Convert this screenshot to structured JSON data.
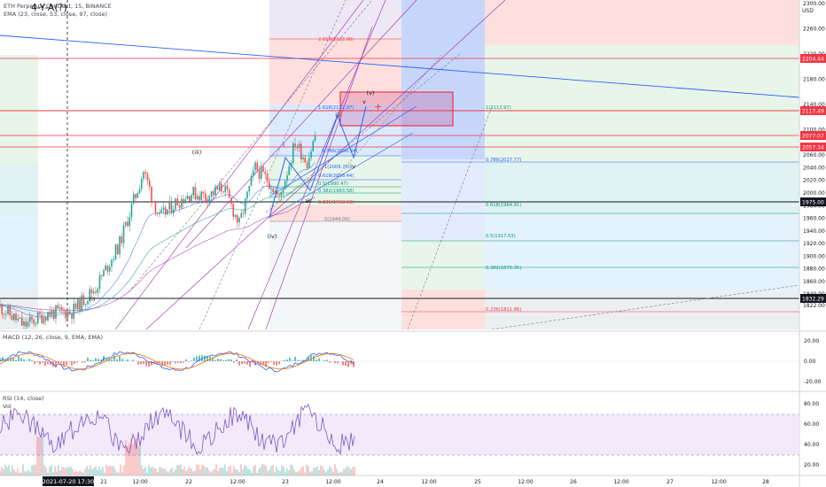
{
  "header": {
    "symbol_line": "ETH Perpetual Contract, 15, BINANCE",
    "ema_line": "EMA (23, close, 53, close, 97, close)",
    "overlay_label": "4-Y-A(?)"
  },
  "price_axis": {
    "currency": "USD",
    "ticks": [
      "2300.00",
      "2260.00",
      "2220.00",
      "2180.00",
      "2140.00",
      "2100.00",
      "2060.00",
      "2040.00",
      "2020.00",
      "2000.00",
      "1980.00",
      "1960.00",
      "1940.00",
      "1920.00",
      "1900.00",
      "1880.00",
      "1860.00",
      "1840.00",
      "1822.00"
    ],
    "badges": [
      {
        "label": "2204.44",
        "color": "#f23645"
      },
      {
        "label": "2117.49",
        "color": "#f23645"
      },
      {
        "label": "2077.07",
        "color": "#f23645"
      },
      {
        "label": "2057.34",
        "color": "#f23645"
      },
      {
        "label": "1975.00",
        "color": "#131722"
      },
      {
        "label": "1832.29",
        "color": "#131722"
      }
    ]
  },
  "macd": {
    "label": "MACD (12, 26, close, 9, EMA, EMA)",
    "ticks": [
      "20.00",
      "0.00",
      "-20.00"
    ]
  },
  "rsi": {
    "label": "RSI (14, close)",
    "vol_label": "Vol",
    "ticks": [
      "80.00",
      "60.00",
      "40.00",
      "20.00"
    ]
  },
  "time_axis": {
    "labels": [
      "21",
      "12:00",
      "22",
      "12:00",
      "23",
      "12:00",
      "24",
      "12:00",
      "25",
      "12:00",
      "26",
      "12:00",
      "27",
      "12:00",
      "28"
    ],
    "cursor_label": "2021-07-20   17:30"
  },
  "fib_labels": [
    {
      "text": "2.618(2232.00)",
      "color": "#f23645"
    },
    {
      "text": "1.618(2112.97)",
      "color": "#2962ff"
    },
    {
      "text": "1(2112.97)",
      "color": "#089981"
    },
    {
      "text": "0.786(2027.77)",
      "color": "#2962ff"
    },
    {
      "text": "0.618(1964.91)",
      "color": "#089981"
    },
    {
      "text": "0.5(1917.63)",
      "color": "#089981"
    },
    {
      "text": "0.382(1870.35)",
      "color": "#089981"
    },
    {
      "text": "0.236(1811.86)",
      "color": "#f23645"
    },
    {
      "text": "0.618(2008.44)",
      "color": "#2962ff"
    },
    {
      "text": "0.5(1990.47)",
      "color": "#089981"
    },
    {
      "text": "0.382(1983.58)",
      "color": "#089981"
    },
    {
      "text": "0.236(1968.50)",
      "color": "#f23645"
    },
    {
      "text": "0(1944.00)",
      "color": "#787b86"
    },
    {
      "text": "0.786(2038.34)",
      "color": "#2962ff"
    },
    {
      "text": "1(2009.70)",
      "color": "#2962ff"
    }
  ],
  "wave_labels": [
    "(i)",
    "(iii)",
    "(iv)",
    "(v)",
    "i",
    "ii",
    "iii",
    "iv",
    "v",
    "a"
  ],
  "colors": {
    "up": "#26a69a",
    "down": "#ef5350",
    "ema1": "#2962ff",
    "ema2": "#089981",
    "ema3": "#9c27b0",
    "rsi_line": "#7e57c2",
    "rsi_band": "#ede1fa"
  },
  "chart_data": {
    "type": "candlestick",
    "symbol": "ETH Perpetual Contract",
    "interval": "15",
    "exchange": "BINANCE",
    "ylim": [
      1810,
      2300
    ],
    "price_path": [
      {
        "x": "2021-07-20 12:00",
        "y": 1820
      },
      {
        "x": "2021-07-20 18:00",
        "y": 1790
      },
      {
        "x": "2021-07-21 00:00",
        "y": 1810
      },
      {
        "x": "2021-07-21 06:00",
        "y": 1812
      },
      {
        "x": "2021-07-21 12:00",
        "y": 1850
      },
      {
        "x": "2021-07-21 18:00",
        "y": 1920
      },
      {
        "x": "2021-07-22 00:00",
        "y": 2035
      },
      {
        "x": "2021-07-22 04:00",
        "y": 1960
      },
      {
        "x": "2021-07-22 08:00",
        "y": 1985
      },
      {
        "x": "2021-07-22 12:00",
        "y": 2000
      },
      {
        "x": "2021-07-22 16:00",
        "y": 1995
      },
      {
        "x": "2021-07-22 20:00",
        "y": 2010
      },
      {
        "x": "2021-07-23 00:00",
        "y": 1950
      },
      {
        "x": "2021-07-23 04:00",
        "y": 2040
      },
      {
        "x": "2021-07-23 08:00",
        "y": 2015
      },
      {
        "x": "2021-07-23 10:00",
        "y": 1990
      },
      {
        "x": "2021-07-23 14:00",
        "y": 2080
      },
      {
        "x": "2021-07-23 17:00",
        "y": 2050
      },
      {
        "x": "2021-07-23 19:00",
        "y": 2090
      }
    ],
    "horizontal_levels": [
      2204.44,
      2117.49,
      2077.07,
      2057.34,
      1975.0,
      1832.29
    ],
    "indicators": [
      "EMA 23",
      "EMA 53",
      "EMA 97",
      "MACD (12, 26, 9)",
      "RSI 14",
      "Vol"
    ]
  }
}
